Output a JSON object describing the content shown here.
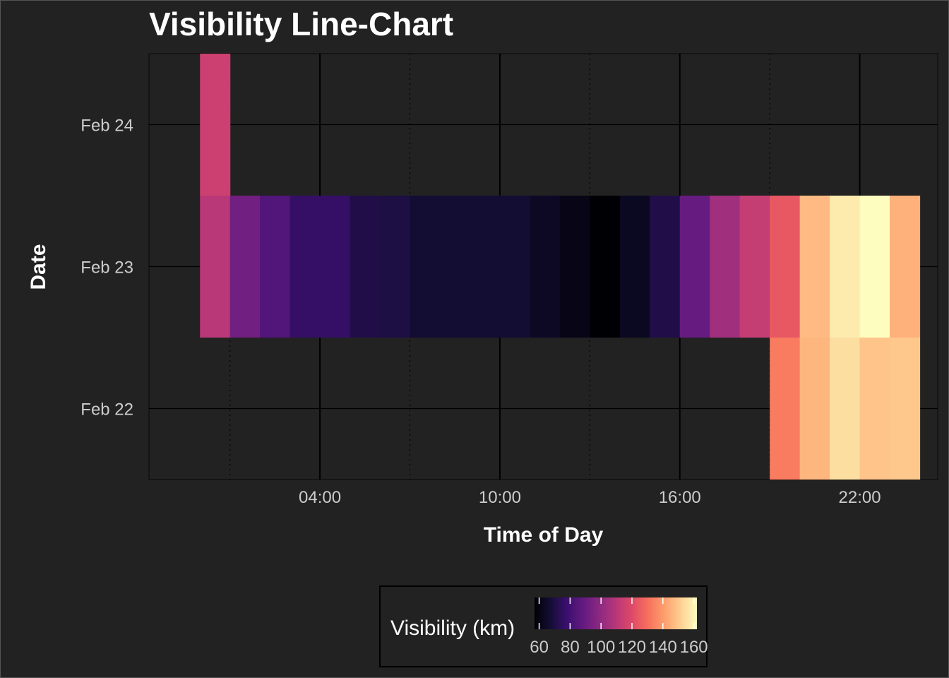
{
  "chart_data": {
    "type": "heatmap",
    "title": "Visibility Line-Chart",
    "xlabel": "Time of Day",
    "ylabel": "Date",
    "x_unit": "hour",
    "x_ticks": [
      {
        "value": 4,
        "label": "04:00"
      },
      {
        "value": 10,
        "label": "10:00"
      },
      {
        "value": 16,
        "label": "16:00"
      },
      {
        "value": 22,
        "label": "22:00"
      }
    ],
    "xlim": [
      -1.7,
      24.6
    ],
    "y_categories": [
      "Feb 22",
      "Feb 23",
      "Feb 24"
    ],
    "grid": true,
    "colorbar": {
      "title": "Visibility (km)",
      "range": [
        57,
        162
      ],
      "ticks": [
        60,
        80,
        100,
        120,
        140,
        160
      ],
      "palette": "magma",
      "position": "bottom"
    },
    "rows": [
      {
        "date": "Feb 24",
        "cells": [
          {
            "hour": 0,
            "value": 115
          }
        ]
      },
      {
        "date": "Feb 23",
        "cells": [
          {
            "hour": 0,
            "value": 110
          },
          {
            "hour": 1,
            "value": 92
          },
          {
            "hour": 2,
            "value": 84
          },
          {
            "hour": 3,
            "value": 76
          },
          {
            "hour": 4,
            "value": 76
          },
          {
            "hour": 5,
            "value": 71
          },
          {
            "hour": 6,
            "value": 70
          },
          {
            "hour": 7,
            "value": 67
          },
          {
            "hour": 8,
            "value": 67
          },
          {
            "hour": 9,
            "value": 67
          },
          {
            "hour": 10,
            "value": 67
          },
          {
            "hour": 11,
            "value": 64
          },
          {
            "hour": 12,
            "value": 61
          },
          {
            "hour": 13,
            "value": 57
          },
          {
            "hour": 14,
            "value": 63
          },
          {
            "hour": 15,
            "value": 71
          },
          {
            "hour": 16,
            "value": 89
          },
          {
            "hour": 17,
            "value": 104
          },
          {
            "hour": 18,
            "value": 113
          },
          {
            "hour": 19,
            "value": 124
          },
          {
            "hour": 20,
            "value": 147
          },
          {
            "hour": 21,
            "value": 158
          },
          {
            "hour": 22,
            "value": 162
          },
          {
            "hour": 23,
            "value": 145
          }
        ]
      },
      {
        "date": "Feb 22",
        "cells": [
          {
            "hour": 19,
            "value": 133
          },
          {
            "hour": 20,
            "value": 146
          },
          {
            "hour": 21,
            "value": 155
          },
          {
            "hour": 22,
            "value": 149
          },
          {
            "hour": 23,
            "value": 150
          }
        ]
      }
    ]
  }
}
